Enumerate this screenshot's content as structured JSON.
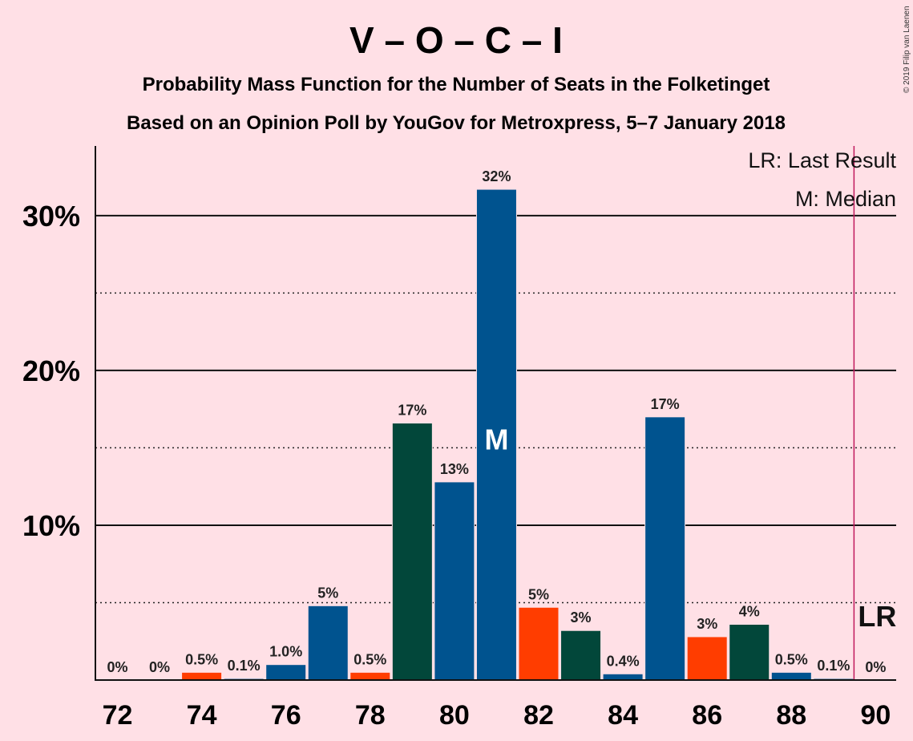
{
  "title": "V – O – C – I",
  "subtitle1": "Probability Mass Function for the Number of Seats in the Folketinget",
  "subtitle2": "Based on an Opinion Poll by YouGov for Metroxpress, 5–7 January 2018",
  "copyright": "© 2019 Filip van Laenen",
  "legend": {
    "last_result": "LR: Last Result",
    "median": "M: Median"
  },
  "median_marker": "M",
  "last_result_marker": "LR",
  "colors": {
    "background": "#FFE0E6",
    "blue": "#00538F",
    "green": "#02473A",
    "orange": "#FF3D00",
    "last_result_line": "#C0185C"
  },
  "chart_data": {
    "type": "bar",
    "x": [
      72,
      73,
      74,
      75,
      76,
      77,
      78,
      79,
      80,
      81,
      82,
      83,
      84,
      85,
      86,
      87,
      88,
      89,
      90
    ],
    "values": [
      0,
      0,
      0.5,
      0.1,
      1.0,
      4.8,
      0.5,
      16.6,
      12.8,
      31.7,
      4.7,
      3.2,
      0.4,
      17.0,
      2.8,
      3.6,
      0.5,
      0.1,
      0
    ],
    "labels": [
      "0%",
      "0%",
      "0.5%",
      "0.1%",
      "1.0%",
      "5%",
      "0.5%",
      "17%",
      "13%",
      "32%",
      "5%",
      "3%",
      "0.4%",
      "17%",
      "3%",
      "4%",
      "0.5%",
      "0.1%",
      "0%"
    ],
    "bar_colors": [
      "blue",
      "blue",
      "orange",
      "blue",
      "blue",
      "blue",
      "orange",
      "green",
      "blue",
      "blue",
      "orange",
      "green",
      "blue",
      "blue",
      "orange",
      "green",
      "blue",
      "blue",
      "blue"
    ],
    "xticks": [
      "72",
      "74",
      "76",
      "78",
      "80",
      "82",
      "84",
      "86",
      "88",
      "90"
    ],
    "yticks": [
      "10%",
      "20%",
      "30%"
    ],
    "ylim": [
      0,
      34.5
    ],
    "median": 81,
    "last_result": 90,
    "grid": "solid lines at 10%, 20%, 30%; dotted at 5%, 15%, 25%",
    "legend_position": "top-right"
  }
}
